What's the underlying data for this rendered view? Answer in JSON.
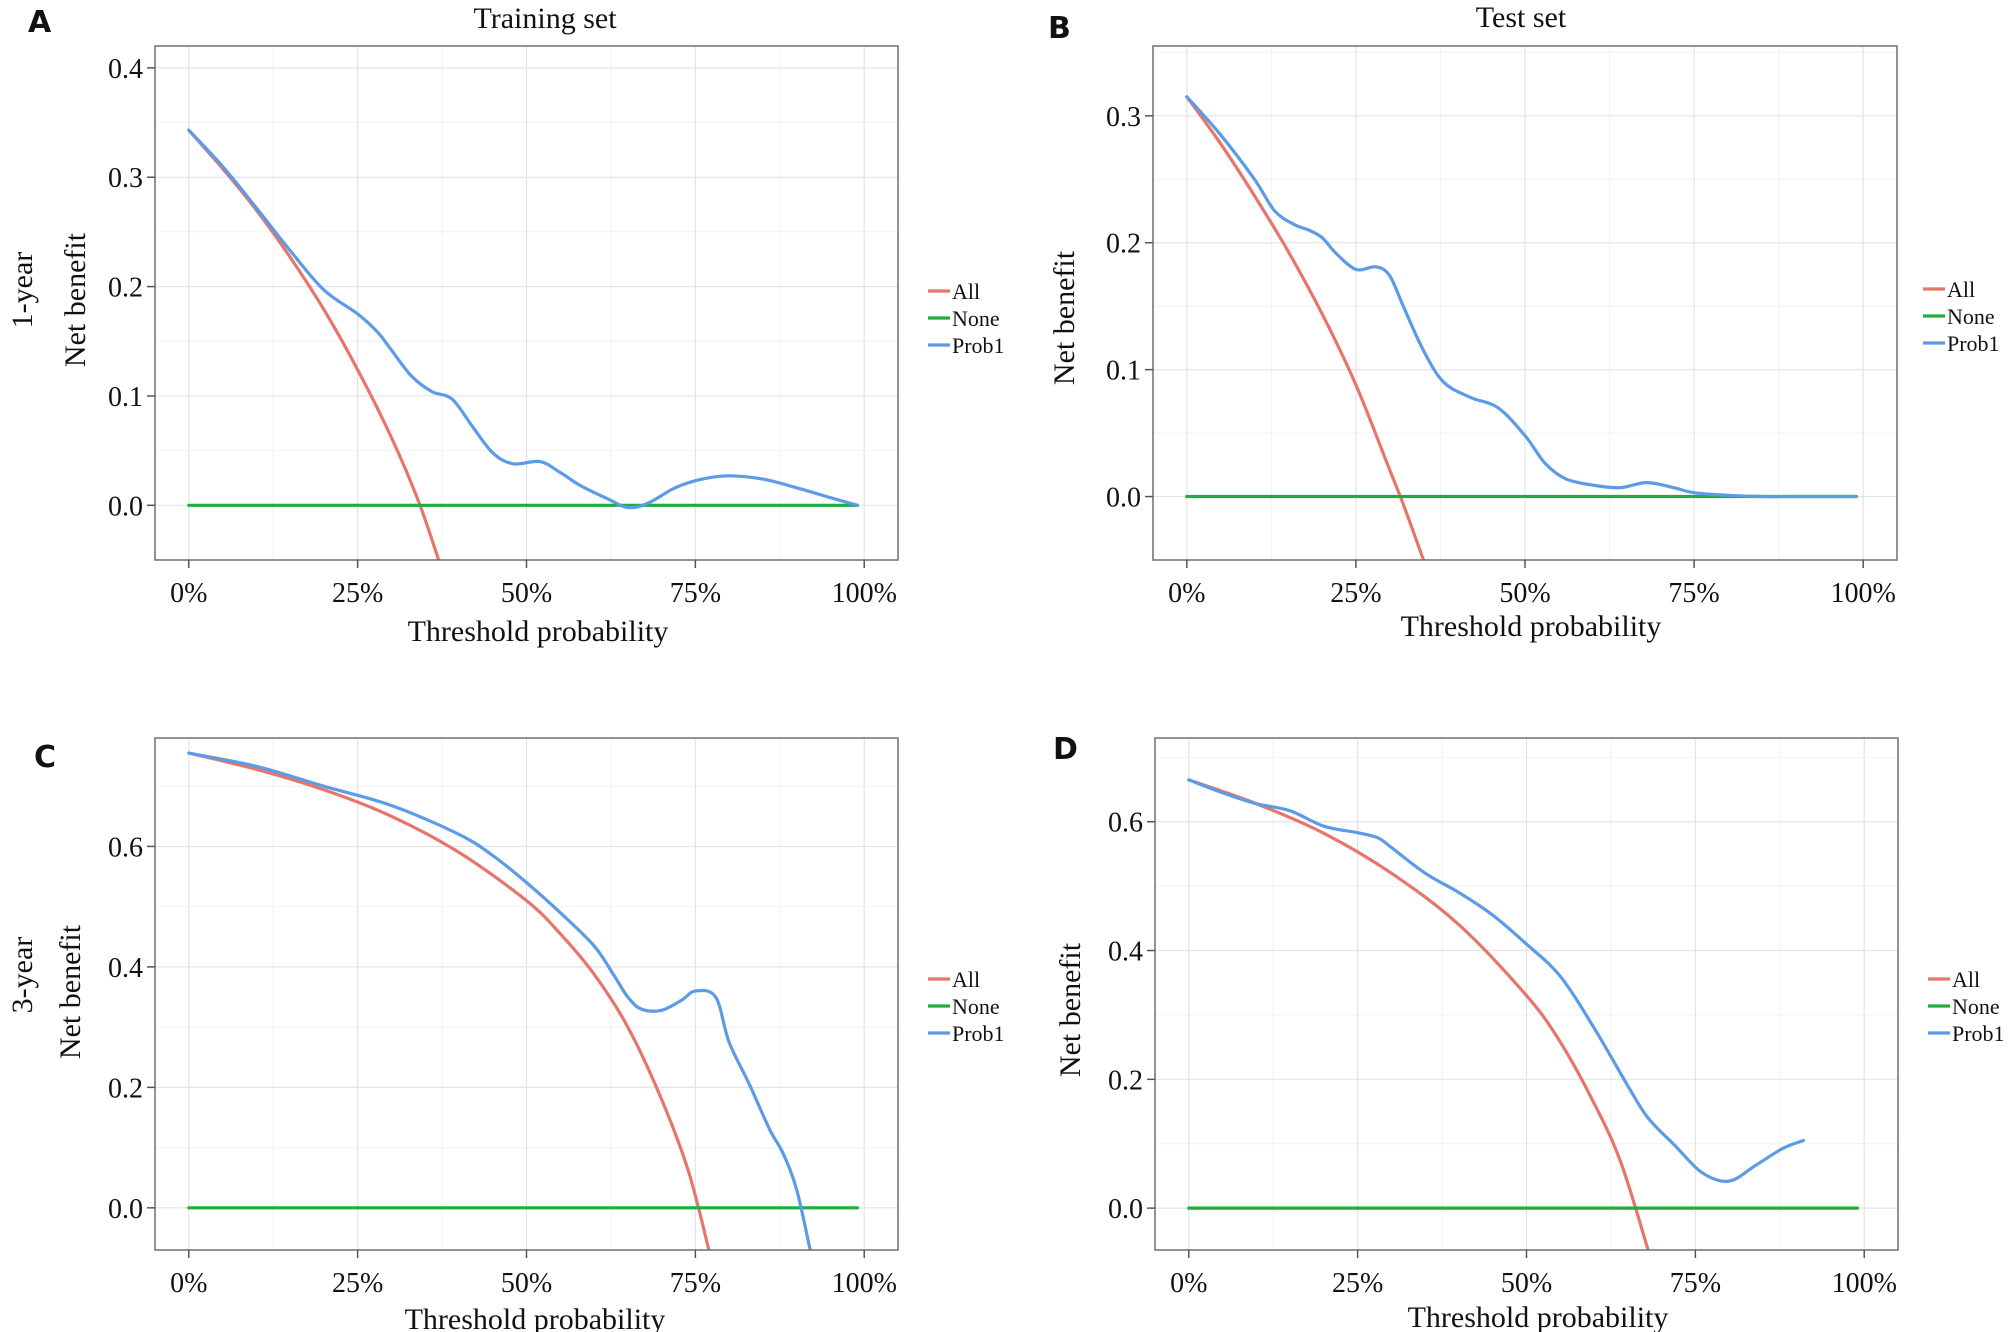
{
  "colors": {
    "All": "#e8756b",
    "None": "#1fae3c",
    "Prob1": "#5c9be6"
  },
  "chart_data": [
    {
      "panel": "A",
      "type": "line",
      "title": "Training set",
      "row_label": "1-year",
      "xlabel": "Threshold probability",
      "ylabel": "Net benefit",
      "xlim": [
        -0.05,
        1.05
      ],
      "ylim": [
        -0.05,
        0.42
      ],
      "x_ticks": [
        0,
        0.25,
        0.5,
        0.75,
        1.0
      ],
      "x_tick_labels": [
        "0%",
        "25%",
        "50%",
        "75%",
        "100%"
      ],
      "y_ticks": [
        0.0,
        0.1,
        0.2,
        0.3,
        0.4
      ],
      "y_tick_labels": [
        "0.0",
        "0.1",
        "0.2",
        "0.3",
        "0.4"
      ],
      "legend": [
        "All",
        "None",
        "Prob1"
      ],
      "legend_position": "right",
      "grid": true,
      "series": [
        {
          "name": "All",
          "x": [
            0,
            0.05,
            0.1,
            0.15,
            0.2,
            0.25,
            0.3,
            0.34,
            0.37
          ],
          "y": [
            0.343,
            0.308,
            0.27,
            0.227,
            0.179,
            0.124,
            0.062,
            0.004,
            -0.05
          ]
        },
        {
          "name": "None",
          "x": [
            0,
            0.99
          ],
          "y": [
            0,
            0
          ]
        },
        {
          "name": "Prob1",
          "x": [
            0,
            0.05,
            0.1,
            0.15,
            0.2,
            0.25,
            0.28,
            0.3,
            0.33,
            0.36,
            0.39,
            0.42,
            0.45,
            0.48,
            0.52,
            0.55,
            0.58,
            0.62,
            0.65,
            0.68,
            0.72,
            0.76,
            0.8,
            0.85,
            0.9,
            0.95,
            0.99
          ],
          "y": [
            0.343,
            0.31,
            0.272,
            0.233,
            0.197,
            0.175,
            0.158,
            0.142,
            0.118,
            0.104,
            0.097,
            0.072,
            0.048,
            0.038,
            0.04,
            0.03,
            0.018,
            0.006,
            -0.002,
            0.002,
            0.016,
            0.024,
            0.027,
            0.024,
            0.016,
            0.007,
            0.0
          ]
        }
      ]
    },
    {
      "panel": "B",
      "type": "line",
      "title": "Test set",
      "row_label": "",
      "xlabel": "Threshold probability",
      "ylabel": "Net benefit",
      "xlim": [
        -0.05,
        1.05
      ],
      "ylim": [
        -0.05,
        0.355
      ],
      "x_ticks": [
        0,
        0.25,
        0.5,
        0.75,
        1.0
      ],
      "x_tick_labels": [
        "0%",
        "25%",
        "50%",
        "75%",
        "100%"
      ],
      "y_ticks": [
        0.0,
        0.1,
        0.2,
        0.3
      ],
      "y_tick_labels": [
        "0.0",
        "0.1",
        "0.2",
        "0.3"
      ],
      "legend": [
        "All",
        "None",
        "Prob1"
      ],
      "legend_position": "right",
      "grid": true,
      "series": [
        {
          "name": "All",
          "x": [
            0,
            0.05,
            0.1,
            0.15,
            0.2,
            0.25,
            0.3,
            0.32,
            0.35
          ],
          "y": [
            0.315,
            0.278,
            0.237,
            0.193,
            0.144,
            0.088,
            0.021,
            -0.006,
            -0.05
          ]
        },
        {
          "name": "None",
          "x": [
            0,
            0.99
          ],
          "y": [
            0,
            0
          ]
        },
        {
          "name": "Prob1",
          "x": [
            0,
            0.05,
            0.1,
            0.13,
            0.16,
            0.18,
            0.2,
            0.22,
            0.25,
            0.28,
            0.3,
            0.32,
            0.35,
            0.38,
            0.42,
            0.46,
            0.5,
            0.53,
            0.56,
            0.6,
            0.64,
            0.68,
            0.72,
            0.75,
            0.8,
            0.85,
            0.9,
            0.99
          ],
          "y": [
            0.315,
            0.285,
            0.25,
            0.225,
            0.214,
            0.21,
            0.204,
            0.192,
            0.179,
            0.181,
            0.174,
            0.15,
            0.115,
            0.09,
            0.078,
            0.07,
            0.048,
            0.026,
            0.014,
            0.009,
            0.007,
            0.011,
            0.007,
            0.003,
            0.001,
            0.0,
            0.0,
            0.0
          ]
        }
      ]
    },
    {
      "panel": "C",
      "type": "line",
      "title": "",
      "row_label": "3-year",
      "xlabel": "Threshold probability",
      "ylabel": "Net benefit",
      "xlim": [
        -0.05,
        1.05
      ],
      "ylim": [
        -0.07,
        0.78
      ],
      "x_ticks": [
        0,
        0.25,
        0.5,
        0.75,
        1.0
      ],
      "x_tick_labels": [
        "0%",
        "25%",
        "50%",
        "75%",
        "100%"
      ],
      "y_ticks": [
        0.0,
        0.2,
        0.4,
        0.6
      ],
      "y_tick_labels": [
        "0.0",
        "0.2",
        "0.4",
        "0.6"
      ],
      "legend": [
        "All",
        "None",
        "Prob1"
      ],
      "legend_position": "right",
      "grid": true,
      "series": [
        {
          "name": "All",
          "x": [
            0,
            0.1,
            0.2,
            0.3,
            0.4,
            0.5,
            0.55,
            0.6,
            0.65,
            0.7,
            0.74,
            0.77
          ],
          "y": [
            0.755,
            0.728,
            0.694,
            0.65,
            0.59,
            0.51,
            0.455,
            0.388,
            0.3,
            0.18,
            0.06,
            -0.07
          ]
        },
        {
          "name": "None",
          "x": [
            0,
            0.99
          ],
          "y": [
            0,
            0
          ]
        },
        {
          "name": "Prob1",
          "x": [
            0,
            0.1,
            0.2,
            0.3,
            0.4,
            0.45,
            0.5,
            0.55,
            0.6,
            0.63,
            0.65,
            0.67,
            0.7,
            0.73,
            0.75,
            0.78,
            0.8,
            0.83,
            0.86,
            0.88,
            0.9,
            0.92
          ],
          "y": [
            0.755,
            0.733,
            0.7,
            0.668,
            0.62,
            0.585,
            0.54,
            0.49,
            0.435,
            0.385,
            0.35,
            0.33,
            0.328,
            0.345,
            0.36,
            0.35,
            0.275,
            0.205,
            0.13,
            0.09,
            0.03,
            -0.07
          ]
        }
      ]
    },
    {
      "panel": "D",
      "type": "line",
      "title": "",
      "row_label": "",
      "xlabel": "Threshold probability",
      "ylabel": "Net benefit",
      "xlim": [
        -0.05,
        1.05
      ],
      "ylim": [
        -0.065,
        0.73
      ],
      "x_ticks": [
        0,
        0.25,
        0.5,
        0.75,
        1.0
      ],
      "x_tick_labels": [
        "0%",
        "25%",
        "50%",
        "75%",
        "100%"
      ],
      "y_ticks": [
        0.0,
        0.2,
        0.4,
        0.6
      ],
      "y_tick_labels": [
        "0.0",
        "0.2",
        "0.4",
        "0.6"
      ],
      "legend": [
        "All",
        "None",
        "Prob1"
      ],
      "legend_position": "right",
      "grid": true,
      "series": [
        {
          "name": "All",
          "x": [
            0,
            0.1,
            0.2,
            0.3,
            0.4,
            0.5,
            0.55,
            0.6,
            0.64,
            0.68
          ],
          "y": [
            0.665,
            0.628,
            0.582,
            0.52,
            0.44,
            0.33,
            0.258,
            0.163,
            0.07,
            -0.065
          ]
        },
        {
          "name": "None",
          "x": [
            0,
            0.99
          ],
          "y": [
            0,
            0
          ]
        },
        {
          "name": "Prob1",
          "x": [
            0,
            0.05,
            0.1,
            0.15,
            0.2,
            0.25,
            0.28,
            0.3,
            0.35,
            0.4,
            0.45,
            0.5,
            0.55,
            0.6,
            0.65,
            0.68,
            0.72,
            0.76,
            0.8,
            0.84,
            0.88,
            0.91
          ],
          "y": [
            0.665,
            0.645,
            0.628,
            0.617,
            0.593,
            0.583,
            0.575,
            0.56,
            0.52,
            0.49,
            0.455,
            0.41,
            0.36,
            0.28,
            0.19,
            0.14,
            0.097,
            0.055,
            0.042,
            0.067,
            0.093,
            0.105
          ]
        }
      ]
    }
  ]
}
